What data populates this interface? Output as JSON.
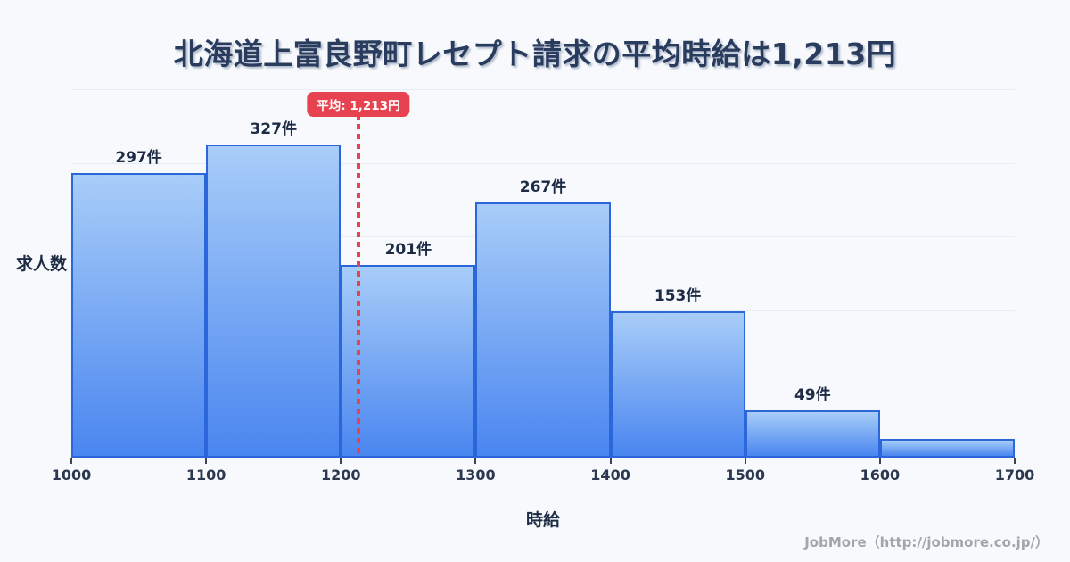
{
  "title": "北海道上富良野町レセプト請求の平均時給は1,213円",
  "chart_data": {
    "type": "bar",
    "subtype": "histogram",
    "title": "北海道上富良野町レセプト請求の平均時給は1,213円",
    "xlabel": "時給",
    "ylabel": "求人数",
    "bin_edges": [
      1000,
      1100,
      1200,
      1300,
      1400,
      1500,
      1600,
      1700
    ],
    "x_tick_labels": [
      "1000",
      "1100",
      "1200",
      "1300",
      "1400",
      "1500",
      "1600",
      "1700"
    ],
    "values": [
      297,
      327,
      201,
      267,
      153,
      49,
      20
    ],
    "bar_labels": [
      "297件",
      "327件",
      "201件",
      "267件",
      "153件",
      "49件",
      ""
    ],
    "mean": {
      "value": 1213,
      "label": "平均: 1,213円"
    },
    "ylim": [
      0,
      385
    ],
    "grid": true,
    "gridline_count": 5,
    "legend": false
  },
  "footer": {
    "credit": "JobMore（http://jobmore.co.jp/）"
  },
  "colors": {
    "background": "#f7f9fc",
    "bar_fill_top": "#a8cdf8",
    "bar_fill_bottom": "#4a86f0",
    "bar_border": "#2c66db",
    "accent_red": "#e64250",
    "title_text": "#2a3c5e",
    "label_text": "#1d2b44",
    "tick_text": "#2b3850",
    "gridline": "#e7edf5",
    "footer_text": "#a1a6ad"
  }
}
